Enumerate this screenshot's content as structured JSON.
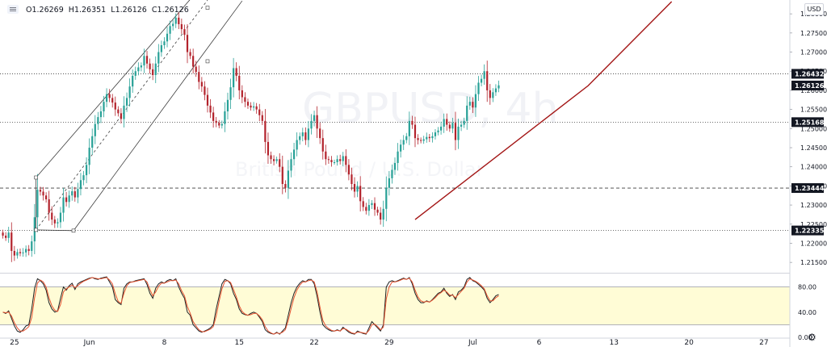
{
  "header": {
    "ohlc": "O1.26269  H1.26351  L1.26126  C1.26126",
    "currency": "USD",
    "watermark_symbol": "GBPUSD, 4h",
    "watermark_name": "British Pound / U.S. Dollar"
  },
  "colors": {
    "up": "#28a197",
    "down": "#b3232c",
    "trendline": "#a31515",
    "channel": "#3c3c3c",
    "stoch_k": "#1e2122",
    "stoch_d": "#e65331",
    "stoch_band": "#fffcd6"
  },
  "chart_data": [
    {
      "type": "candlestick",
      "ylim": [
        1.2125,
        1.2832
      ],
      "y_ticks": [
        {
          "value": 1.28,
          "label": "1.28000"
        },
        {
          "value": 1.275,
          "label": "1.27500"
        },
        {
          "value": 1.27,
          "label": "1.27000"
        },
        {
          "value": 1.265,
          "label": "1.26500"
        },
        {
          "value": 1.26,
          "label": "1.26000"
        },
        {
          "value": 1.255,
          "label": "1.25500"
        },
        {
          "value": 1.25,
          "label": "1.25000"
        },
        {
          "value": 1.245,
          "label": "1.24500"
        },
        {
          "value": 1.24,
          "label": "1.24000"
        },
        {
          "value": 1.235,
          "label": "1.23500"
        },
        {
          "value": 1.23,
          "label": "1.23000"
        },
        {
          "value": 1.225,
          "label": "1.22500"
        },
        {
          "value": 1.22,
          "label": "1.22000"
        },
        {
          "value": 1.215,
          "label": "1.21500"
        }
      ],
      "x_ticks": [
        {
          "label": "25",
          "bar": 4
        },
        {
          "label": "Jun",
          "bar": 30
        },
        {
          "label": "8",
          "bar": 56
        },
        {
          "label": "15",
          "bar": 82
        },
        {
          "label": "22",
          "bar": 108
        },
        {
          "label": "29",
          "bar": 134
        },
        {
          "label": "Jul",
          "bar": 163
        },
        {
          "label": "6",
          "bar": 186
        },
        {
          "label": "13",
          "bar": 212
        },
        {
          "label": "20",
          "bar": 238
        },
        {
          "label": "27",
          "bar": 264
        }
      ],
      "x_domain": [
        -1,
        273
      ],
      "price_lines": [
        {
          "value": 1.26432,
          "label": "1.26432",
          "style": "dotted",
          "label_bg": "#131722"
        },
        {
          "value": 1.25168,
          "label": "1.25168",
          "style": "dotted",
          "label_bg": "#131722"
        },
        {
          "value": 1.23444,
          "label": "1.23444",
          "style": "dashed",
          "label_bg": "#131722"
        },
        {
          "value": 1.22335,
          "label": "1.22335",
          "style": "dotted",
          "label_bg": "#131722"
        }
      ],
      "last_price": {
        "value": 1.26126,
        "label": "1.26126",
        "label_bg": "#131722"
      },
      "channel": {
        "upper": [
          [
            11.5,
            1.2372
          ],
          [
            65,
            1.2838
          ]
        ],
        "lower": [
          [
            24.5,
            1.2233
          ],
          [
            83,
            1.2834
          ]
        ],
        "mid": [
          [
            11.5,
            1.2235
          ],
          [
            71,
            1.2836
          ]
        ]
      },
      "trendline": [
        [
          143,
          1.2262
        ],
        [
          203,
          1.2612
        ],
        [
          232,
          1.2832
        ]
      ],
      "anchors": [
        {
          "x": 11.5,
          "y": 1.2372,
          "kind": "up"
        },
        {
          "x": 11.5,
          "y": 1.2235,
          "kind": "down"
        },
        {
          "x": 24.5,
          "y": 1.2233,
          "kind": "down"
        },
        {
          "x": 71,
          "y": 1.2816,
          "kind": "up"
        },
        {
          "x": 71,
          "y": 1.2676,
          "kind": "down"
        }
      ],
      "closes": [
        1.222,
        1.2214,
        1.2228,
        1.218,
        1.2168,
        1.2177,
        1.2174,
        1.2176,
        1.2185,
        1.218,
        1.2205,
        1.2268,
        1.234,
        1.2335,
        1.2325,
        1.2315,
        1.228,
        1.2262,
        1.2252,
        1.2255,
        1.228,
        1.232,
        1.2308,
        1.2325,
        1.2336,
        1.232,
        1.2342,
        1.2365,
        1.2378,
        1.2405,
        1.245,
        1.248,
        1.2512,
        1.253,
        1.2545,
        1.257,
        1.259,
        1.258,
        1.2568,
        1.255,
        1.254,
        1.2525,
        1.256,
        1.258,
        1.261,
        1.2638,
        1.265,
        1.266,
        1.2665,
        1.269,
        1.267,
        1.2655,
        1.264,
        1.267,
        1.27,
        1.2718,
        1.2728,
        1.2748,
        1.2768,
        1.2774,
        1.279,
        1.2773,
        1.276,
        1.2745,
        1.27,
        1.269,
        1.2662,
        1.2648,
        1.2622,
        1.261,
        1.2588,
        1.256,
        1.2542,
        1.252,
        1.2515,
        1.2508,
        1.2512,
        1.2545,
        1.2575,
        1.2608,
        1.2658,
        1.2638,
        1.26,
        1.2582,
        1.257,
        1.256,
        1.2555,
        1.2558,
        1.255,
        1.2535,
        1.252,
        1.2465,
        1.243,
        1.242,
        1.2415,
        1.242,
        1.24,
        1.2355,
        1.2345,
        1.239,
        1.242,
        1.2445,
        1.247,
        1.248,
        1.249,
        1.247,
        1.25,
        1.252,
        1.2535,
        1.25,
        1.2475,
        1.244,
        1.242,
        1.2418,
        1.2412,
        1.2412,
        1.242,
        1.2415,
        1.2428,
        1.2405,
        1.238,
        1.2355,
        1.2335,
        1.235,
        1.231,
        1.2295,
        1.2285,
        1.23,
        1.2305,
        1.2288,
        1.228,
        1.2262,
        1.229,
        1.2345,
        1.237,
        1.2392,
        1.241,
        1.244,
        1.2458,
        1.247,
        1.248,
        1.252,
        1.251,
        1.2475,
        1.247,
        1.2468,
        1.2472,
        1.2478,
        1.2475,
        1.248,
        1.249,
        1.2495,
        1.2505,
        1.2525,
        1.251,
        1.25,
        1.2515,
        1.247,
        1.2505,
        1.251,
        1.252,
        1.256,
        1.257,
        1.2555,
        1.259,
        1.262,
        1.263,
        1.265,
        1.26,
        1.258,
        1.2595,
        1.2605,
        1.2613
      ]
    },
    {
      "type": "line",
      "indicator": "stochastic",
      "ylim": [
        0,
        100
      ],
      "y_ticks": [
        {
          "value": 80,
          "label": "80.00"
        },
        {
          "value": 40,
          "label": "40.00"
        },
        {
          "value": 0,
          "label": "0.00"
        }
      ],
      "band": [
        20,
        80
      ],
      "series": [
        {
          "values": [
            40,
            38,
            42,
            30,
            18,
            10,
            8,
            12,
            18,
            20,
            45,
            78,
            93,
            90,
            85,
            75,
            55,
            45,
            40,
            42,
            62,
            80,
            75,
            82,
            86,
            76,
            85,
            88,
            90,
            92,
            94,
            95,
            93,
            92,
            94,
            95,
            96,
            88,
            80,
            60,
            55,
            52,
            78,
            85,
            88,
            88,
            90,
            91,
            92,
            93,
            84,
            70,
            62,
            78,
            85,
            88,
            86,
            90,
            92,
            90,
            93,
            80,
            70,
            62,
            40,
            35,
            20,
            15,
            10,
            8,
            10,
            12,
            15,
            20,
            45,
            65,
            85,
            92,
            90,
            85,
            70,
            60,
            45,
            38,
            36,
            35,
            38,
            40,
            38,
            32,
            25,
            12,
            8,
            6,
            5,
            8,
            5,
            10,
            15,
            35,
            55,
            70,
            80,
            86,
            90,
            88,
            92,
            92,
            85,
            65,
            40,
            20,
            15,
            12,
            10,
            10,
            12,
            10,
            16,
            12,
            8,
            6,
            5,
            10,
            8,
            6,
            5,
            15,
            25,
            20,
            15,
            10,
            20,
            80,
            88,
            90,
            88,
            90,
            92,
            94,
            92,
            95,
            85,
            70,
            60,
            55,
            55,
            58,
            56,
            60,
            65,
            70,
            72,
            78,
            70,
            65,
            68,
            60,
            72,
            75,
            80,
            92,
            95,
            90,
            88,
            84,
            80,
            75,
            62,
            55,
            60,
            66,
            68
          ]
        },
        {
          "values": [
            40,
            39,
            40,
            34,
            23,
            15,
            10,
            10,
            13,
            17,
            31,
            63,
            86,
            91,
            88,
            80,
            63,
            50,
            43,
            41,
            52,
            72,
            77,
            80,
            83,
            79,
            82,
            86,
            89,
            91,
            93,
            95,
            94,
            93,
            93,
            94,
            95,
            91,
            85,
            69,
            57,
            54,
            70,
            82,
            87,
            88,
            89,
            90,
            91,
            92,
            88,
            76,
            66,
            72,
            81,
            86,
            86,
            88,
            90,
            90,
            91,
            85,
            74,
            66,
            49,
            38,
            25,
            18,
            12,
            9,
            9,
            11,
            13,
            17,
            34,
            57,
            77,
            89,
            90,
            87,
            76,
            64,
            50,
            41,
            37,
            35,
            36,
            38,
            38,
            34,
            28,
            17,
            10,
            7,
            5,
            7,
            6,
            8,
            12,
            27,
            46,
            63,
            75,
            83,
            88,
            88,
            90,
            91,
            88,
            72,
            48,
            27,
            18,
            14,
            11,
            10,
            11,
            10,
            14,
            13,
            10,
            7,
            6,
            8,
            8,
            7,
            6,
            11,
            20,
            21,
            17,
            12,
            16,
            61,
            80,
            88,
            88,
            89,
            91,
            93,
            92,
            94,
            88,
            75,
            64,
            58,
            56,
            57,
            56,
            59,
            63,
            68,
            71,
            75,
            72,
            67,
            67,
            63,
            68,
            73,
            78,
            88,
            93,
            91,
            89,
            86,
            82,
            77,
            66,
            58,
            58,
            63,
            66
          ]
        }
      ]
    }
  ]
}
